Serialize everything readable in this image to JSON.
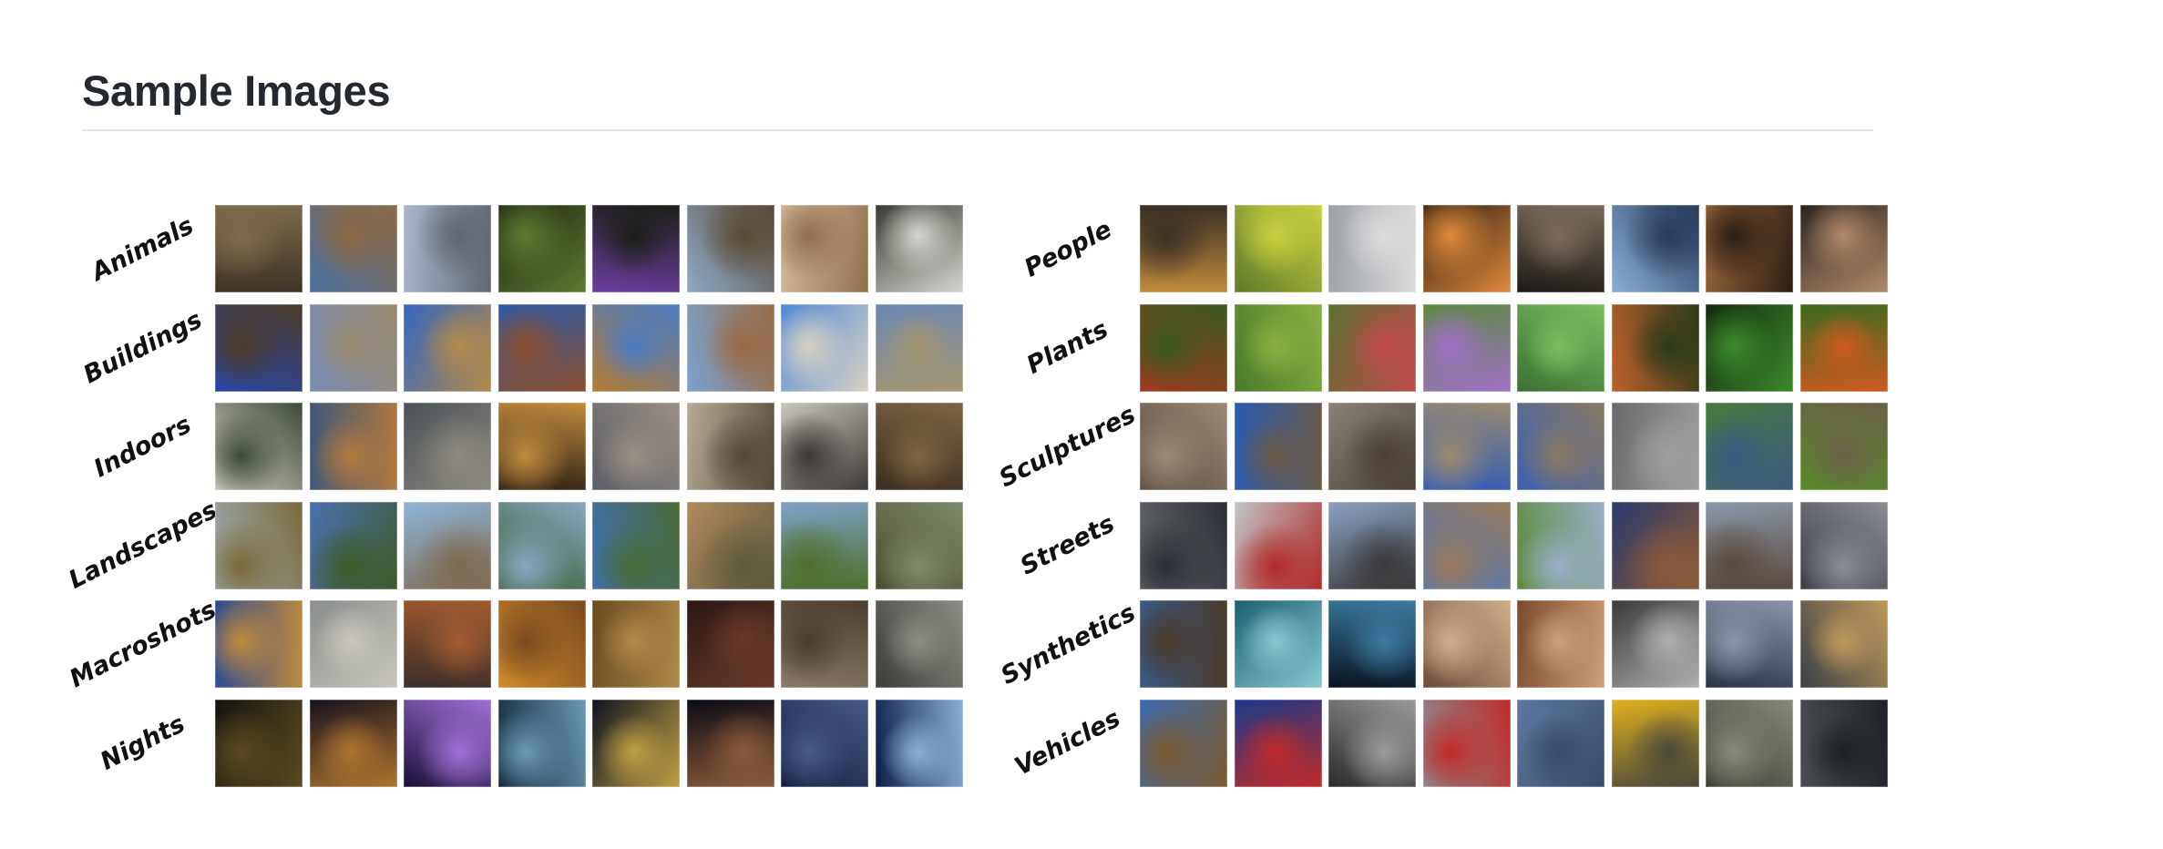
{
  "page": {
    "title": "Sample Images"
  },
  "gallery": {
    "left": {
      "rows": [
        {
          "label": "Animals",
          "tiles": [
            [
              "#3e3226",
              "#7b6a4c"
            ],
            [
              "#4a6e9c",
              "#8d6a45"
            ],
            [
              "#aab7cc",
              "#5f6670"
            ],
            [
              "#1f2416",
              "#5d7a2e"
            ],
            [
              "#6b3ea0",
              "#1c1f18"
            ],
            [
              "#90a9c7",
              "#594a35"
            ],
            [
              "#d9c1a3",
              "#8f6f4c"
            ],
            [
              "#3a3a33",
              "#d5d6cf"
            ]
          ]
        },
        {
          "label": "Buildings",
          "tiles": [
            [
              "#2a47a8",
              "#4b3a26"
            ],
            [
              "#7a8bb3",
              "#9a8b70"
            ],
            [
              "#3566c1",
              "#b38a48"
            ],
            [
              "#2d5aa6",
              "#8a4e2e"
            ],
            [
              "#b27c36",
              "#4a7bc6"
            ],
            [
              "#7aa2cf",
              "#9a6a44"
            ],
            [
              "#4f87d6",
              "#d9d2c3"
            ],
            [
              "#6d87b3",
              "#a49670"
            ]
          ]
        },
        {
          "label": "Indoors",
          "tiles": [
            [
              "#d7d2c4",
              "#3d4a3a"
            ],
            [
              "#3f5778",
              "#b27a3d"
            ],
            [
              "#4a5156",
              "#8d8a80"
            ],
            [
              "#2a1e12",
              "#c08b3e"
            ],
            [
              "#5b5e66",
              "#9a8f84"
            ],
            [
              "#b7ab98",
              "#55483a"
            ],
            [
              "#c9c6bd",
              "#3d3a36"
            ],
            [
              "#3a2d1f",
              "#7d6544"
            ]
          ]
        },
        {
          "label": "Landscapes",
          "tiles": [
            [
              "#a1b0bd",
              "#7a6a3a"
            ],
            [
              "#4b6fb0",
              "#3e5b2a"
            ],
            [
              "#8fb6d8",
              "#7e6a52"
            ],
            [
              "#2e5a25",
              "#8aa8c3"
            ],
            [
              "#3e6fb0",
              "#4a6a35"
            ],
            [
              "#b08a5c",
              "#5e5a3e"
            ],
            [
              "#7ea2c8",
              "#4f6e2c"
            ],
            [
              "#4a4a2e",
              "#7e8c6a"
            ]
          ]
        },
        {
          "label": "Macroshots",
          "tiles": [
            [
              "#2a4a96",
              "#c08a3a"
            ],
            [
              "#8a8f8c",
              "#c8c6bc"
            ],
            [
              "#3a2e2a",
              "#a25a2e"
            ],
            [
              "#d08a2a",
              "#7a4a1e"
            ],
            [
              "#6a4a1e",
              "#b08a4a"
            ],
            [
              "#2a1814",
              "#6a3a2a"
            ],
            [
              "#8a7a6a",
              "#4a3e30"
            ],
            [
              "#3a3e38",
              "#8a8e84"
            ]
          ]
        },
        {
          "label": "Nights",
          "tiles": [
            [
              "#141410",
              "#5a4a20"
            ],
            [
              "#16121e",
              "#b0752e"
            ],
            [
              "#1a1038",
              "#a070d8"
            ],
            [
              "#10202e",
              "#6a9ab8"
            ],
            [
              "#0e1420",
              "#c0a044"
            ],
            [
              "#0c0c16",
              "#8a5a3a"
            ],
            [
              "#121a3a",
              "#4a5a8a"
            ],
            [
              "#0e1e4a",
              "#8ab0d8"
            ]
          ]
        }
      ]
    },
    "right": {
      "rows": [
        {
          "label": "People",
          "tiles": [
            [
              "#c08a3a",
              "#3a3026"
            ],
            [
              "#5f7a2a",
              "#c8d040"
            ],
            [
              "#9aa0a6",
              "#dcdcdc"
            ],
            [
              "#2a1a10",
              "#e08a3a"
            ],
            [
              "#1e1a16",
              "#7a6a5a"
            ],
            [
              "#8ab0d8",
              "#2a3a5a"
            ],
            [
              "#a06a3a",
              "#2a1e16"
            ],
            [
              "#2a2420",
              "#b08a6a"
            ]
          ]
        },
        {
          "label": "Plants",
          "tiles": [
            [
              "#a03a1e",
              "#3a5a1e"
            ],
            [
              "#4a7a2a",
              "#8ab040"
            ],
            [
              "#5a7030",
              "#c04a4a"
            ],
            [
              "#5a8a3a",
              "#a070c8"
            ],
            [
              "#3a7030",
              "#7ac060"
            ],
            [
              "#c0602a",
              "#2a3a1a"
            ],
            [
              "#14280e",
              "#3a8a2a"
            ],
            [
              "#3a6a1e",
              "#d05a20"
            ]
          ]
        },
        {
          "label": "Sculptures",
          "tiles": [
            [
              "#5a4a3e",
              "#9a8a78"
            ],
            [
              "#2a5ab0",
              "#6a5a48"
            ],
            [
              "#8a8278",
              "#4a4036"
            ],
            [
              "#2e5ab8",
              "#9a8a70"
            ],
            [
              "#3a60b0",
              "#8a7a64"
            ],
            [
              "#6a6a6a",
              "#a0a0a0"
            ],
            [
              "#4a7a3a",
              "#3a5a80"
            ],
            [
              "#5a8a2a",
              "#6a6048"
            ]
          ]
        },
        {
          "label": "Streets",
          "tiles": [
            [
              "#6a6e72",
              "#2a2e34"
            ],
            [
              "#c0c4c8",
              "#b02a2a"
            ],
            [
              "#8aa0c0",
              "#3a3a3a"
            ],
            [
              "#4a78c0",
              "#9a7a5a"
            ],
            [
              "#5a8a3a",
              "#9ab0c8"
            ],
            [
              "#2a3a6a",
              "#8a5a3a"
            ],
            [
              "#8a98a8",
              "#5a4a3e"
            ],
            [
              "#3a3e44",
              "#8a8e94"
            ]
          ]
        },
        {
          "label": "Synthetics",
          "tiles": [
            [
              "#3a5a8a",
              "#4a3a2a"
            ],
            [
              "#1a6070",
              "#8ac8d0"
            ],
            [
              "#0a1420",
              "#3a7aa0"
            ],
            [
              "#6a4a3a",
              "#d0b08a"
            ],
            [
              "#7a4a2a",
              "#d0a07a"
            ],
            [
              "#3a3a3a",
              "#b0b0b0"
            ],
            [
              "#2a3648",
              "#8a96a8"
            ],
            [
              "#3a4048",
              "#c09a5a"
            ]
          ]
        },
        {
          "label": "Vehicles",
          "tiles": [
            [
              "#3a6ab0",
              "#7a5a30"
            ],
            [
              "#1a3a8a",
              "#c02a2a"
            ],
            [
              "#2a2a2a",
              "#9a9a9a"
            ],
            [
              "#8a8e94",
              "#c02a2a"
            ],
            [
              "#5a7aa0",
              "#3a4a6a"
            ],
            [
              "#e0b020",
              "#4a4a3a"
            ],
            [
              "#3a3a32",
              "#8a8a7a"
            ],
            [
              "#4a4e52",
              "#1e2226"
            ]
          ]
        }
      ]
    }
  }
}
